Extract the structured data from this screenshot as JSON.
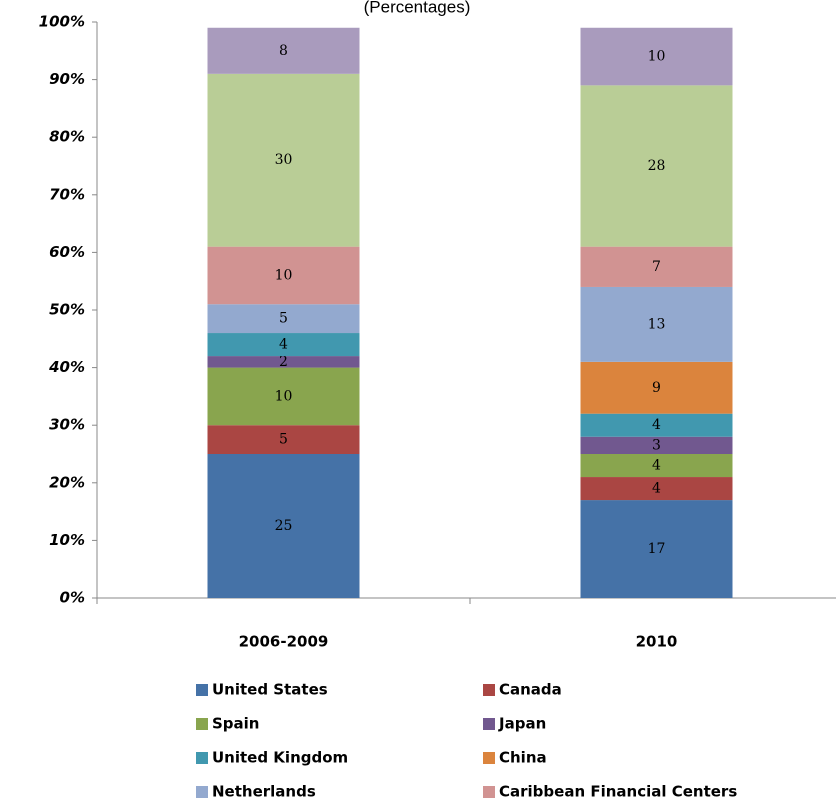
{
  "chart_data": {
    "type": "stacked_bar",
    "subtitle": "(Percentages)",
    "categories": [
      "2006-2009",
      "2010"
    ],
    "series": [
      {
        "name": "United States",
        "color": "#4572a7",
        "values": [
          25,
          17
        ]
      },
      {
        "name": "Canada",
        "color": "#aa4643",
        "values": [
          5,
          4
        ]
      },
      {
        "name": "Spain",
        "color": "#89a54e",
        "values": [
          10,
          4
        ]
      },
      {
        "name": "Japan",
        "color": "#71588f",
        "values": [
          2,
          3
        ]
      },
      {
        "name": "United Kingdom",
        "color": "#4198af",
        "values": [
          4,
          4
        ]
      },
      {
        "name": "China",
        "color": "#db843d",
        "values": [
          null,
          9
        ]
      },
      {
        "name": "Netherlands",
        "color": "#93a9cf",
        "values": [
          5,
          13
        ]
      },
      {
        "name": "Caribbean Financial Centers",
        "color": "#d19392",
        "values": [
          10,
          7
        ]
      },
      {
        "color": "#b9cd96",
        "values": [
          30,
          28
        ]
      },
      {
        "color": "#a99bbd",
        "values": [
          8,
          10
        ]
      }
    ],
    "ylim": [
      0,
      100
    ],
    "yticks": [
      {
        "value": 0,
        "label": "0%"
      },
      {
        "value": 10,
        "label": "10%"
      },
      {
        "value": 20,
        "label": "20%"
      },
      {
        "value": 30,
        "label": "30%"
      },
      {
        "value": 40,
        "label": "40%"
      },
      {
        "value": 50,
        "label": "50%"
      },
      {
        "value": 60,
        "label": "60%"
      },
      {
        "value": 70,
        "label": "70%"
      },
      {
        "value": 80,
        "label": "80%"
      },
      {
        "value": 90,
        "label": "90%"
      },
      {
        "value": 100,
        "label": "100%"
      }
    ],
    "legend": "bottom"
  }
}
